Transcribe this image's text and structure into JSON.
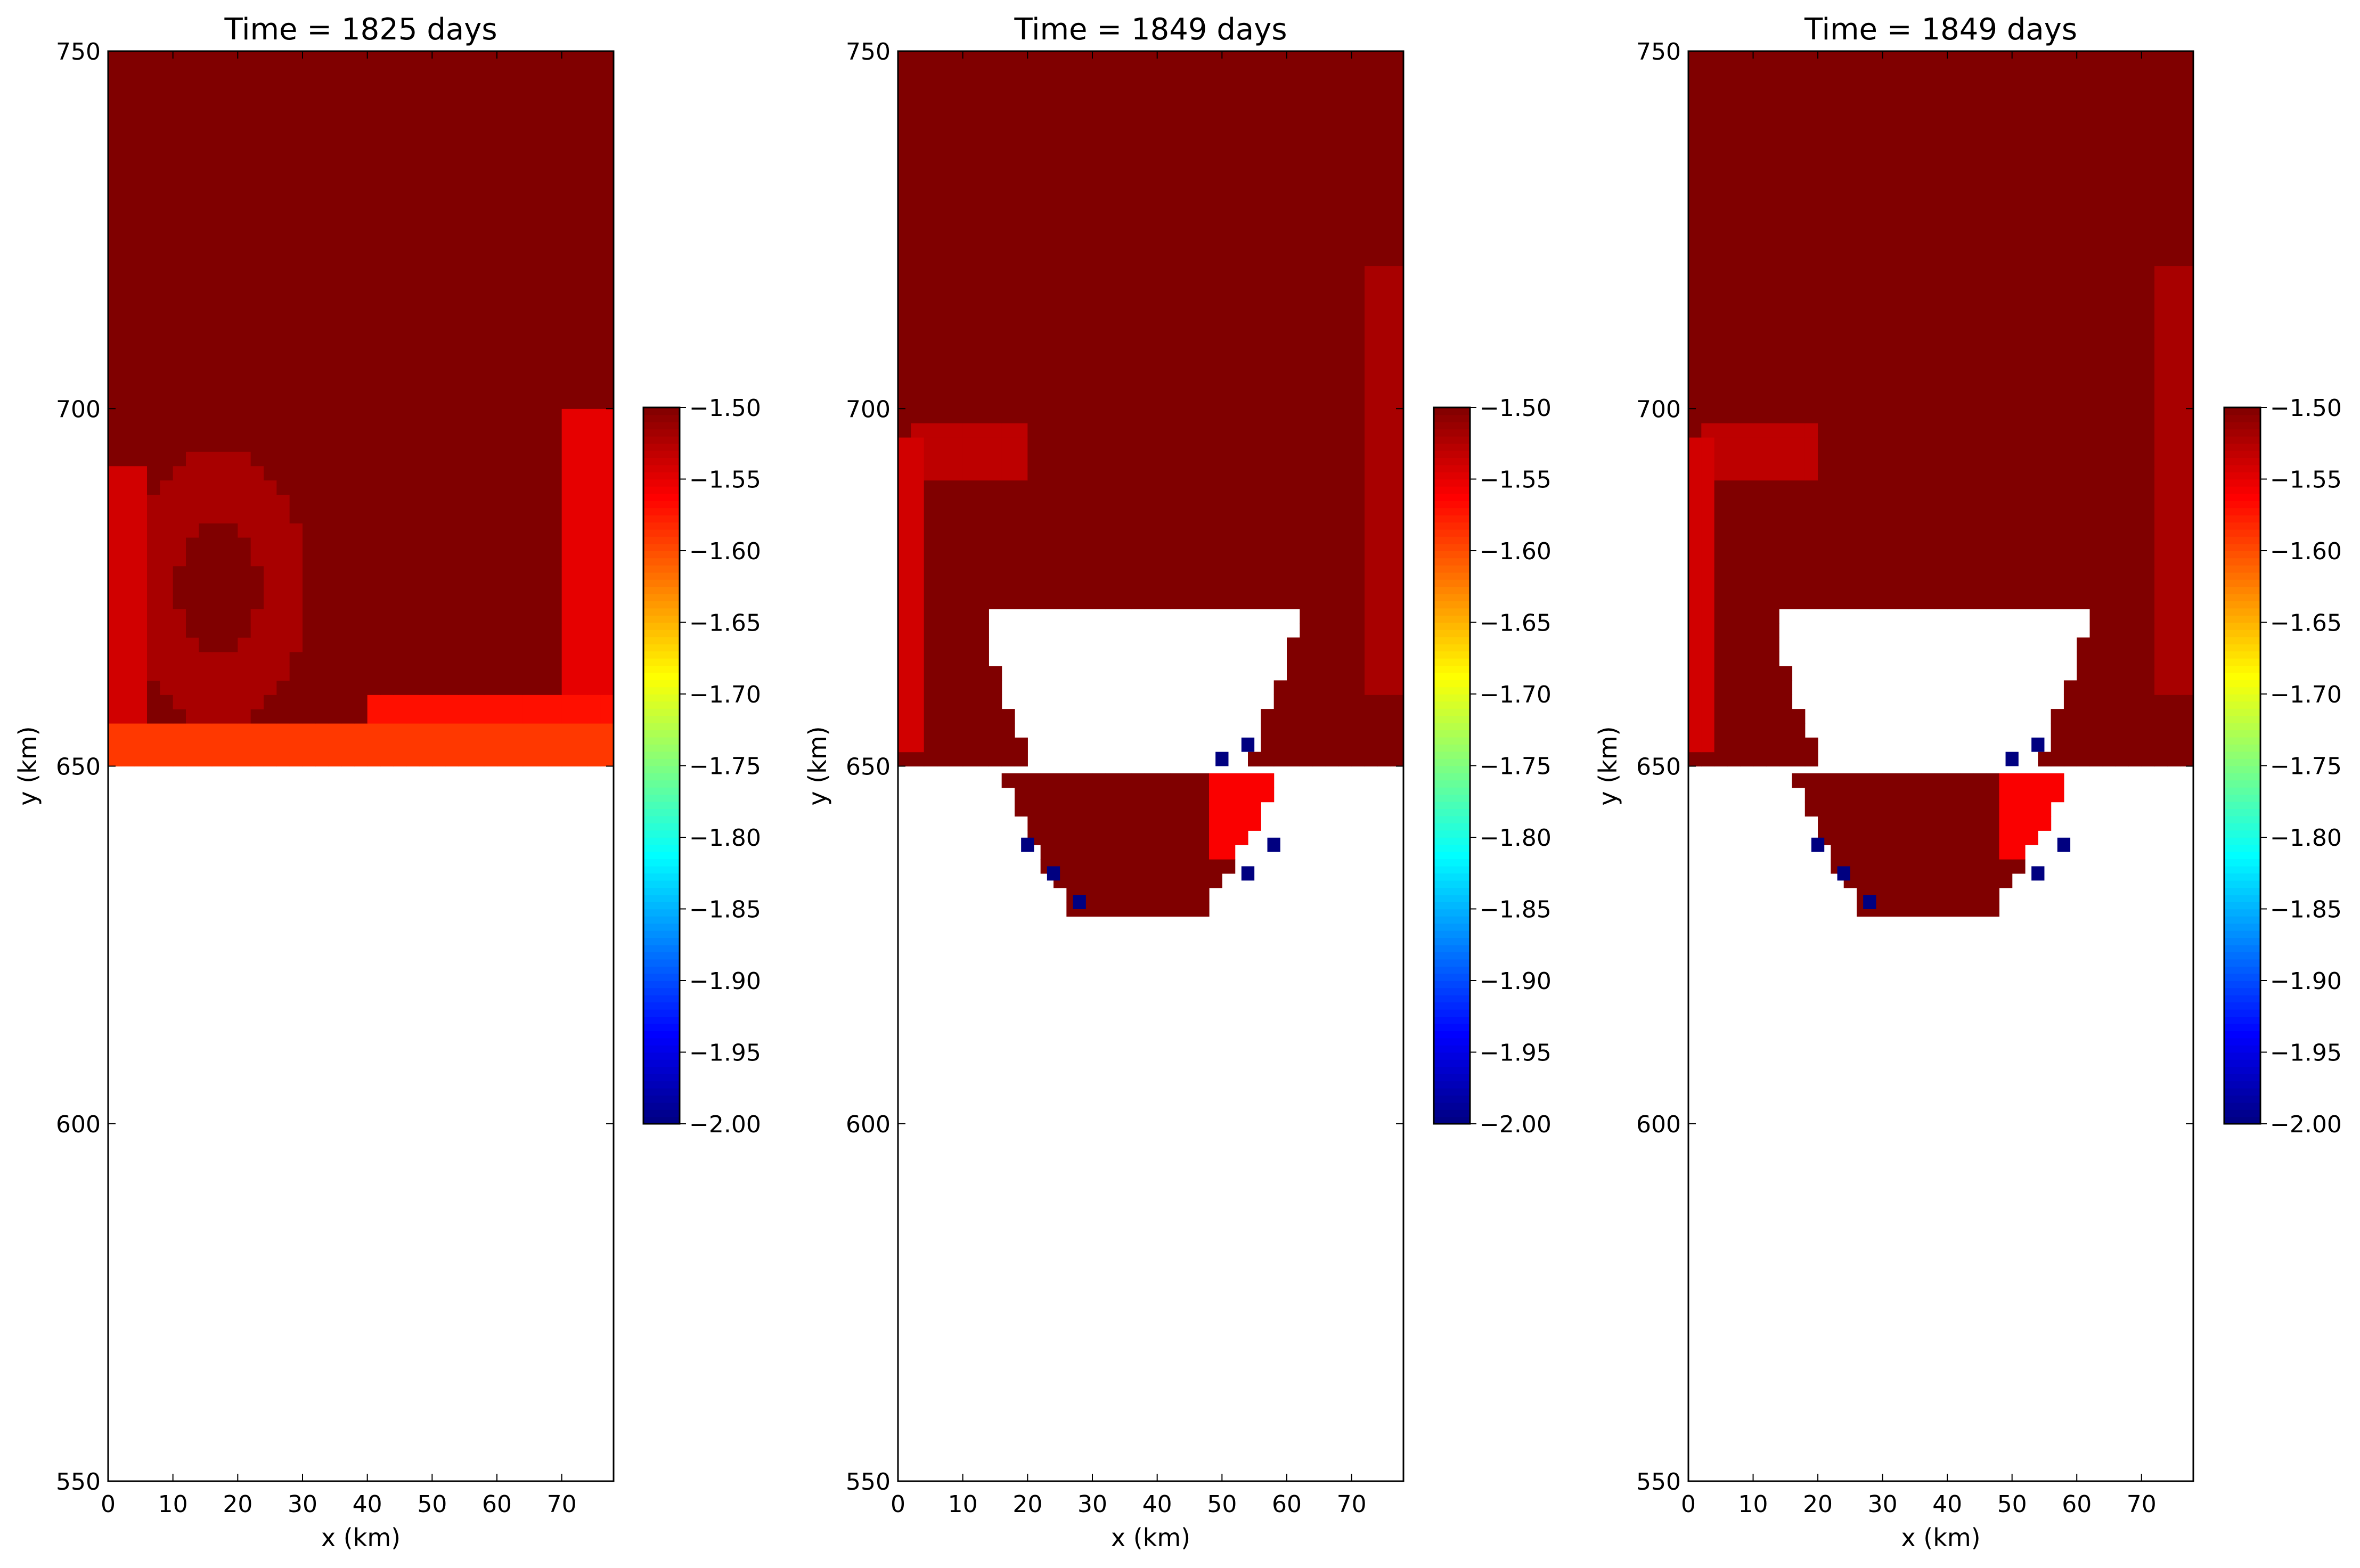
{
  "chart_data": [
    {
      "type": "heatmap",
      "title": "Time = 1825 days",
      "xlabel": "x (km)",
      "ylabel": "y (km)",
      "xlim": [
        0,
        78
      ],
      "ylim": [
        550,
        750
      ],
      "xticks": [
        0,
        10,
        20,
        30,
        40,
        50,
        60,
        70
      ],
      "yticks": [
        550,
        600,
        650,
        700,
        750
      ],
      "colormap": "jet",
      "clim": [
        -2.0,
        -1.5
      ],
      "colorbar_ticks": [
        "−2.00",
        "−1.95",
        "−1.90",
        "−1.85",
        "−1.80",
        "−1.75",
        "−1.70",
        "−1.65",
        "−1.60",
        "−1.55",
        "−1.50"
      ],
      "field_y_range": [
        650,
        750
      ],
      "cavity": null,
      "features": [
        {
          "kind": "bottom-band",
          "y_range": [
            650,
            655
          ],
          "x_range": [
            0,
            78
          ],
          "value": -1.59
        },
        {
          "kind": "warm-band",
          "y_range": [
            655,
            659
          ],
          "x_range": [
            40,
            78
          ],
          "value": -1.57
        },
        {
          "kind": "left-wall",
          "x_range": [
            1,
            6
          ],
          "y_range": [
            655,
            692
          ],
          "value": -1.54
        },
        {
          "kind": "loop",
          "center": [
            17,
            675
          ],
          "radius": 10,
          "value": -1.52
        },
        {
          "kind": "right-wall",
          "x_range": [
            70,
            77
          ],
          "y_range": [
            655,
            700
          ],
          "value": -1.55
        }
      ]
    },
    {
      "type": "heatmap",
      "title": "Time = 1849 days",
      "xlabel": "x (km)",
      "ylabel": "y (km)",
      "xlim": [
        0,
        78
      ],
      "ylim": [
        550,
        750
      ],
      "xticks": [
        0,
        10,
        20,
        30,
        40,
        50,
        60,
        70
      ],
      "yticks": [
        550,
        600,
        650,
        700,
        750
      ],
      "colormap": "jet",
      "clim": [
        -2.0,
        -1.5
      ],
      "colorbar_ticks": [
        "−2.00",
        "−1.95",
        "−1.90",
        "−1.85",
        "−1.80",
        "−1.75",
        "−1.70",
        "−1.65",
        "−1.60",
        "−1.55",
        "−1.50"
      ],
      "field_y_range": [
        650,
        750
      ],
      "cavity": {
        "top_y": 672,
        "x_range": [
          13,
          62
        ],
        "bottom_y": 647,
        "trough_bottom_y": 629,
        "trough_x_range": [
          15,
          60
        ]
      },
      "blue_cells": [
        [
          19,
          638
        ],
        [
          23,
          634
        ],
        [
          27,
          630
        ],
        [
          49,
          650
        ],
        [
          53,
          652
        ],
        [
          53,
          634
        ],
        [
          57,
          638
        ]
      ],
      "features": [
        {
          "kind": "left-wall",
          "x_range": [
            0,
            4
          ],
          "y_range": [
            652,
            695
          ],
          "value": -1.54
        },
        {
          "kind": "loop-top",
          "x_range": [
            2,
            20
          ],
          "y_range": [
            690,
            698
          ],
          "value": -1.53
        },
        {
          "kind": "right-wall",
          "x_range": [
            72,
            78
          ],
          "y_range": [
            660,
            720
          ],
          "value": -1.52
        },
        {
          "kind": "trough-right",
          "x_range": [
            49,
            60
          ],
          "y_range": [
            638,
            650
          ],
          "value": -1.56
        }
      ]
    },
    {
      "type": "heatmap",
      "title": "Time = 1849 days",
      "xlabel": "x (km)",
      "ylabel": "y (km)",
      "xlim": [
        0,
        78
      ],
      "ylim": [
        550,
        750
      ],
      "xticks": [
        0,
        10,
        20,
        30,
        40,
        50,
        60,
        70
      ],
      "yticks": [
        550,
        600,
        650,
        700,
        750
      ],
      "colormap": "jet",
      "clim": [
        -2.0,
        -1.5
      ],
      "colorbar_ticks": [
        "−2.00",
        "−1.95",
        "−1.90",
        "−1.85",
        "−1.80",
        "−1.75",
        "−1.70",
        "−1.65",
        "−1.60",
        "−1.55",
        "−1.50"
      ],
      "field_y_range": [
        650,
        750
      ],
      "cavity": {
        "top_y": 672,
        "x_range": [
          13,
          62
        ],
        "bottom_y": 647,
        "trough_bottom_y": 629,
        "trough_x_range": [
          15,
          60
        ]
      },
      "blue_cells": [
        [
          19,
          638
        ],
        [
          23,
          634
        ],
        [
          27,
          630
        ],
        [
          49,
          650
        ],
        [
          53,
          652
        ],
        [
          53,
          634
        ],
        [
          57,
          638
        ]
      ],
      "features": [
        {
          "kind": "left-wall",
          "x_range": [
            0,
            4
          ],
          "y_range": [
            652,
            695
          ],
          "value": -1.54
        },
        {
          "kind": "loop-top",
          "x_range": [
            2,
            20
          ],
          "y_range": [
            690,
            698
          ],
          "value": -1.53
        },
        {
          "kind": "right-wall",
          "x_range": [
            72,
            78
          ],
          "y_range": [
            660,
            720
          ],
          "value": -1.52
        },
        {
          "kind": "trough-right",
          "x_range": [
            49,
            60
          ],
          "y_range": [
            638,
            650
          ],
          "value": -1.56
        }
      ]
    }
  ]
}
